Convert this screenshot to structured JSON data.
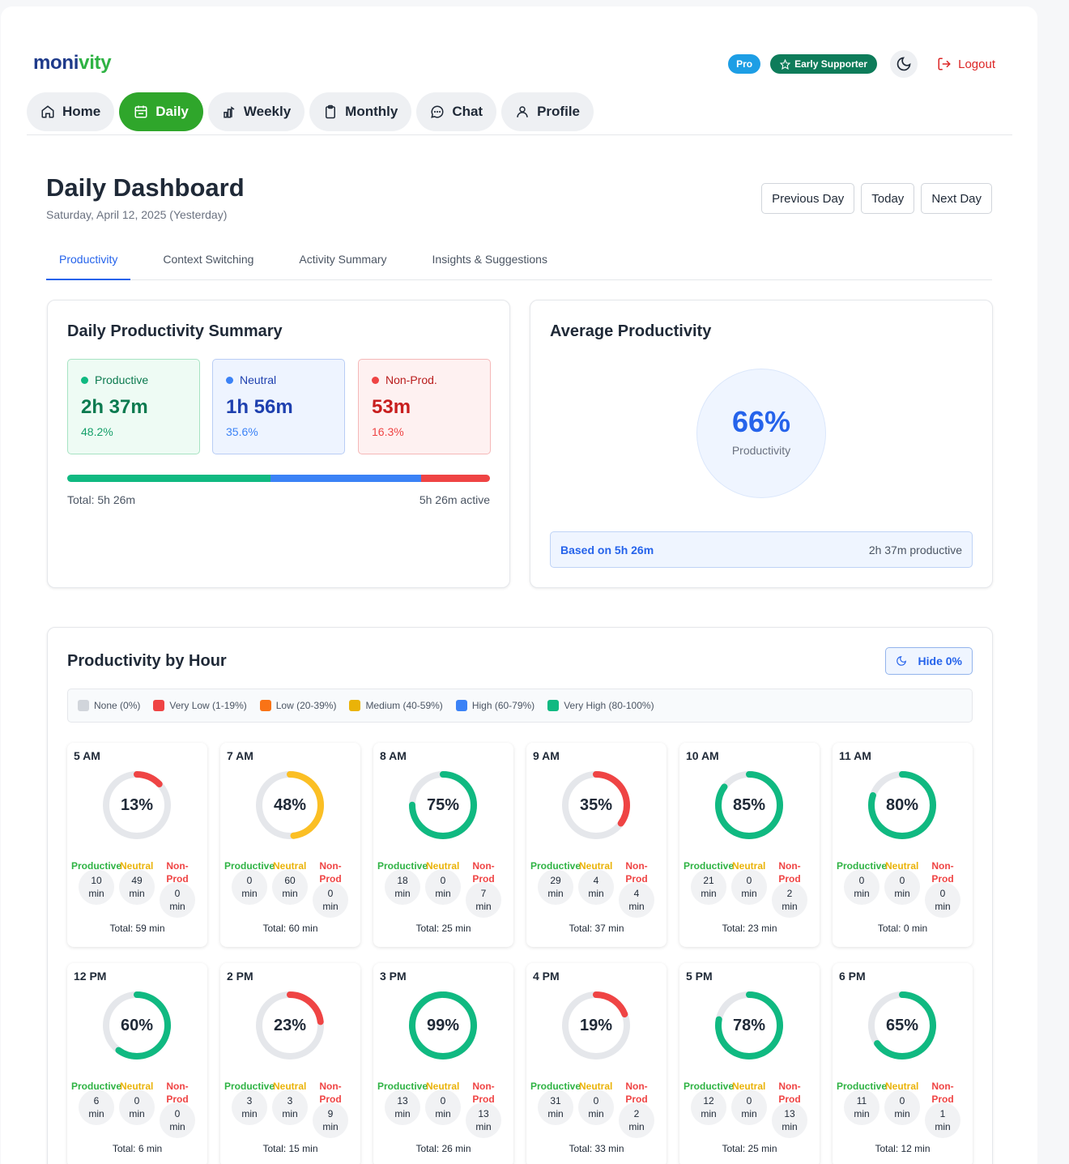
{
  "app": {
    "logo_part1": "moni",
    "logo_part2": "vity"
  },
  "header": {
    "pro_badge": "Pro",
    "supporter_badge": "Early Supporter",
    "logout_label": "Logout"
  },
  "nav": [
    {
      "label": "Home",
      "icon": "home-icon"
    },
    {
      "label": "Daily",
      "icon": "calendar-icon",
      "active": true
    },
    {
      "label": "Weekly",
      "icon": "chart-icon"
    },
    {
      "label": "Monthly",
      "icon": "clipboard-icon"
    },
    {
      "label": "Chat",
      "icon": "chat-icon"
    },
    {
      "label": "Profile",
      "icon": "user-icon"
    }
  ],
  "page": {
    "title": "Daily Dashboard",
    "subtitle": "Saturday, April 12, 2025 (Yesterday)"
  },
  "day_nav": {
    "prev": "Previous Day",
    "today": "Today",
    "next": "Next Day"
  },
  "tabs": [
    "Productivity",
    "Context Switching",
    "Activity Summary",
    "Insights & Suggestions"
  ],
  "summary": {
    "title": "Daily Productivity Summary",
    "productive": {
      "label": "Productive",
      "value": "2h 37m",
      "pct": "48.2%",
      "share": 48.2
    },
    "neutral": {
      "label": "Neutral",
      "value": "1h 56m",
      "pct": "35.6%",
      "share": 35.6
    },
    "nonprod": {
      "label": "Non-Prod.",
      "value": "53m",
      "pct": "16.3%",
      "share": 16.3
    },
    "total": "Total: 5h 26m",
    "active": "5h 26m active"
  },
  "average": {
    "title": "Average Productivity",
    "value": "66%",
    "label": "Productivity",
    "based_on": "Based on 5h 26m",
    "productive": "2h 37m productive"
  },
  "hourly": {
    "title": "Productivity by Hour",
    "hide_label": "Hide 0%",
    "legend": [
      {
        "label": "None (0%)",
        "color": "#d1d5db"
      },
      {
        "label": "Very Low (1-19%)",
        "color": "#ef4444"
      },
      {
        "label": "Low (20-39%)",
        "color": "#f97316"
      },
      {
        "label": "Medium (40-59%)",
        "color": "#eab308"
      },
      {
        "label": "High (60-79%)",
        "color": "#3b82f6"
      },
      {
        "label": "Very High (80-100%)",
        "color": "#10b981"
      }
    ],
    "col_labels": {
      "productive": "Productive",
      "neutral": "Neutral",
      "nonprod": "Non-Prod"
    },
    "hours": [
      {
        "hour": "5 AM",
        "pct": 13,
        "pct_label": "13%",
        "color": "#ef4444",
        "prod": "10",
        "neut": "49",
        "non": "0",
        "total": "Total: 59 min"
      },
      {
        "hour": "7 AM",
        "pct": 48,
        "pct_label": "48%",
        "color": "#fbbf24",
        "prod": "0",
        "neut": "60",
        "non": "0",
        "total": "Total: 60 min"
      },
      {
        "hour": "8 AM",
        "pct": 75,
        "pct_label": "75%",
        "color": "#10b981",
        "prod": "18",
        "neut": "0",
        "non": "7",
        "total": "Total: 25 min"
      },
      {
        "hour": "9 AM",
        "pct": 35,
        "pct_label": "35%",
        "color": "#ef4444",
        "prod": "29",
        "neut": "4",
        "non": "4",
        "total": "Total: 37 min"
      },
      {
        "hour": "10 AM",
        "pct": 85,
        "pct_label": "85%",
        "color": "#10b981",
        "prod": "21",
        "neut": "0",
        "non": "2",
        "total": "Total: 23 min"
      },
      {
        "hour": "11 AM",
        "pct": 80,
        "pct_label": "80%",
        "color": "#10b981",
        "prod": "0",
        "neut": "0",
        "non": "0",
        "total": "Total: 0 min"
      },
      {
        "hour": "12 PM",
        "pct": 60,
        "pct_label": "60%",
        "color": "#10b981",
        "prod": "6",
        "neut": "0",
        "non": "0",
        "total": "Total: 6 min"
      },
      {
        "hour": "2 PM",
        "pct": 23,
        "pct_label": "23%",
        "color": "#ef4444",
        "prod": "3",
        "neut": "3",
        "non": "9",
        "total": "Total: 15 min"
      },
      {
        "hour": "3 PM",
        "pct": 99,
        "pct_label": "99%",
        "color": "#10b981",
        "prod": "13",
        "neut": "0",
        "non": "13",
        "total": "Total: 26 min"
      },
      {
        "hour": "4 PM",
        "pct": 19,
        "pct_label": "19%",
        "color": "#ef4444",
        "prod": "31",
        "neut": "0",
        "non": "2",
        "total": "Total: 33 min"
      },
      {
        "hour": "5 PM",
        "pct": 78,
        "pct_label": "78%",
        "color": "#10b981",
        "prod": "12",
        "neut": "0",
        "non": "13",
        "total": "Total: 25 min"
      },
      {
        "hour": "6 PM",
        "pct": 65,
        "pct_label": "65%",
        "color": "#10b981",
        "prod": "11",
        "neut": "0",
        "non": "1",
        "total": "Total: 12 min"
      }
    ]
  }
}
